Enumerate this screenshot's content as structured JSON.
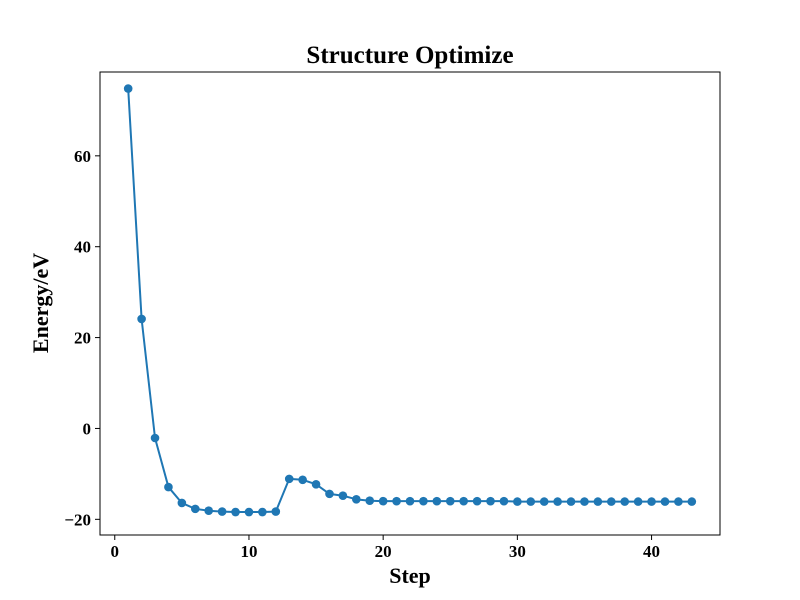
{
  "chart_data": {
    "type": "line",
    "title": "Structure Optimize",
    "xlabel": "Step",
    "ylabel": "Energy/eV",
    "xlim": [
      -1.1,
      45.1
    ],
    "ylim": [
      -23.45,
      78.45
    ],
    "xticks": [
      0,
      10,
      20,
      30,
      40
    ],
    "yticks": [
      -20,
      0,
      20,
      40,
      60
    ],
    "xtick_labels": [
      "0",
      "10",
      "20",
      "30",
      "40"
    ],
    "ytick_labels": [
      "−20",
      "0",
      "20",
      "40",
      "60"
    ],
    "grid": false,
    "marker": "circle",
    "series": [
      {
        "color": "#1f77b4",
        "x": [
          1,
          2,
          3,
          4,
          5,
          6,
          7,
          8,
          9,
          10,
          11,
          12,
          13,
          14,
          15,
          16,
          17,
          18,
          19,
          20,
          21,
          22,
          23,
          24,
          25,
          26,
          27,
          28,
          29,
          30,
          31,
          32,
          33,
          34,
          35,
          36,
          37,
          38,
          39,
          40,
          41,
          42,
          43
        ],
        "y": [
          74.8,
          24.1,
          -2.1,
          -12.9,
          -16.4,
          -17.7,
          -18.1,
          -18.3,
          -18.4,
          -18.4,
          -18.4,
          -18.3,
          -11.1,
          -11.3,
          -12.3,
          -14.4,
          -14.8,
          -15.6,
          -15.9,
          -16.0,
          -16.0,
          -16.0,
          -16.0,
          -16.0,
          -16.0,
          -16.0,
          -16.0,
          -16.0,
          -16.0,
          -16.1,
          -16.1,
          -16.1,
          -16.1,
          -16.1,
          -16.1,
          -16.1,
          -16.1,
          -16.1,
          -16.1,
          -16.1,
          -16.1,
          -16.1,
          -16.1
        ]
      }
    ]
  }
}
